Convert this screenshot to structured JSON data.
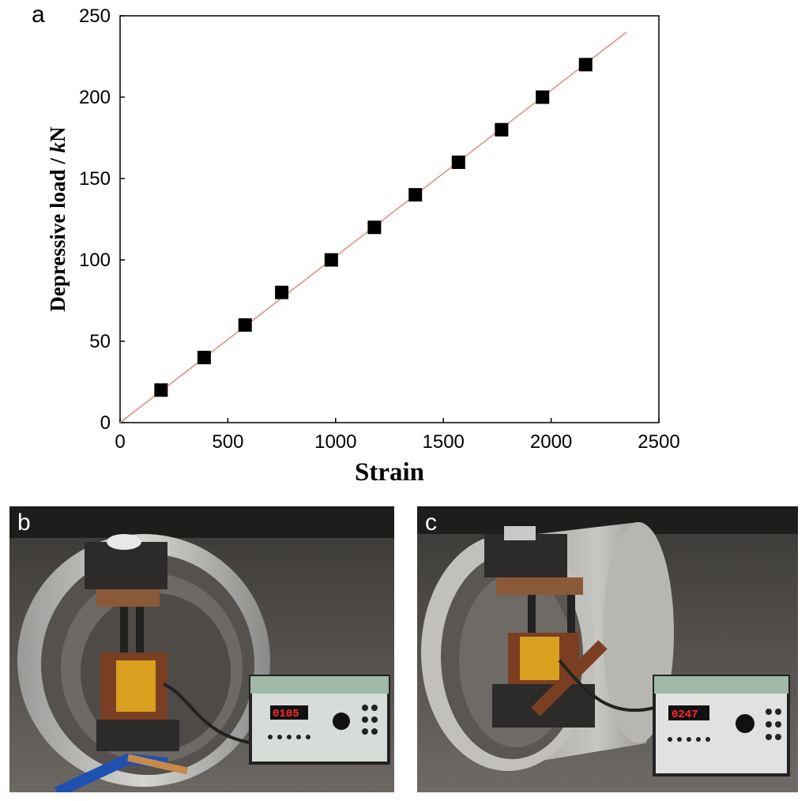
{
  "panels": {
    "a": "a",
    "b": "b",
    "c": "c"
  },
  "chart_data": {
    "type": "scatter",
    "title": "",
    "xlabel": "Strain",
    "ylabel_main": "Depressive load  / ",
    "ylabel_unit_italic": "k",
    "ylabel_unit_rest": "N",
    "xlim": [
      0,
      2500
    ],
    "ylim": [
      0,
      250
    ],
    "xticks": [
      0,
      500,
      1000,
      1500,
      2000,
      2500
    ],
    "yticks": [
      0,
      50,
      100,
      150,
      200,
      250
    ],
    "grid": false,
    "legend": "none",
    "marker_color": "#000000",
    "fit_line_color": "#e08a80",
    "points": [
      {
        "x": 190,
        "y": 20
      },
      {
        "x": 390,
        "y": 40
      },
      {
        "x": 580,
        "y": 60
      },
      {
        "x": 750,
        "y": 80
      },
      {
        "x": 980,
        "y": 100
      },
      {
        "x": 1180,
        "y": 120
      },
      {
        "x": 1370,
        "y": 140
      },
      {
        "x": 1570,
        "y": 160
      },
      {
        "x": 1770,
        "y": 180
      },
      {
        "x": 1960,
        "y": 200
      },
      {
        "x": 2160,
        "y": 220
      }
    ],
    "fit_line": {
      "x": [
        0,
        2350
      ],
      "y": [
        0,
        240
      ]
    }
  },
  "photos": {
    "b": {
      "display_reading": "0105",
      "description_color_cylinder": "#d9a020"
    },
    "c": {
      "display_reading": "0247",
      "description_color_cylinder": "#d9a020"
    }
  }
}
